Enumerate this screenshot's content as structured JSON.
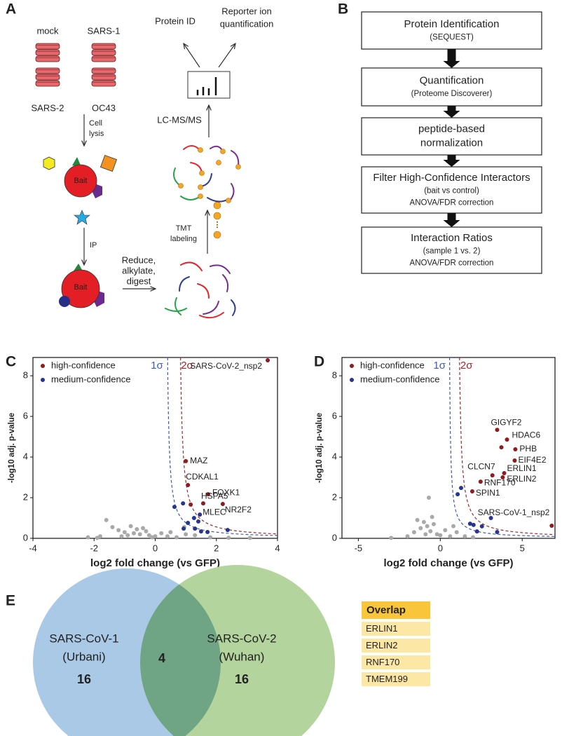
{
  "panel_labels": [
    "A",
    "B",
    "C",
    "D",
    "E"
  ],
  "schematic": {
    "samples": [
      "mock",
      "SARS-1",
      "SARS-2",
      "OC43"
    ],
    "lysis": [
      "Cell",
      "lysis"
    ],
    "bait": "Bait",
    "ip": "IP",
    "digest": [
      "Reduce,",
      "alkylate,",
      "digest"
    ],
    "tmt": [
      "TMT",
      "labeling"
    ],
    "lcms": "LC-MS/MS",
    "protein_id": "Protein ID",
    "reporter": [
      "Reporter ion",
      "quantification"
    ]
  },
  "pipeline": [
    {
      "title": [
        "Protein Identification"
      ],
      "notes": [
        "(SEQUEST)"
      ]
    },
    {
      "title": [
        "Quantification"
      ],
      "notes": [
        "(Proteome Discoverer)"
      ]
    },
    {
      "title": [
        "peptide-based",
        "normalization"
      ]
    },
    {
      "title": [
        "Filter High-Confidence Interactors"
      ],
      "notes": [
        "(bait vs control)",
        "ANOVA/FDR correction"
      ]
    },
    {
      "title": [
        "Interaction Ratios"
      ],
      "notes": [
        "(sample 1 vs. 2)",
        "ANOVA/FDR correction"
      ]
    }
  ],
  "chart_data": [
    {
      "type": "scatter",
      "xlabel": "log2 fold change (vs GFP)",
      "ylabel": "-log10 adj. p-value",
      "xlim": [
        -4,
        4
      ],
      "xticks": [
        -4,
        -2,
        0,
        2,
        4
      ],
      "ylim": [
        0,
        8.9
      ],
      "yticks": [
        0,
        2,
        4,
        6,
        8
      ],
      "legend": "upper left",
      "thresholds": [
        {
          "label": "1σ",
          "color": "#3f57c4"
        },
        {
          "label": "2σ",
          "color": "#a3262a"
        }
      ],
      "series": [
        {
          "color": "#a9a9a9",
          "x": [
            -1.6,
            -1.4,
            -1.2,
            -1.0,
            -0.8,
            -0.6,
            -0.5,
            -0.3,
            -0.2,
            0,
            0.2,
            -0.9,
            -1.8,
            -0.4,
            0.4,
            -2.2,
            0.7,
            1.0,
            -0.7,
            -1.1,
            -1.9,
            -0.1,
            0.5,
            0.95,
            1.3,
            1.8,
            2.4,
            3.1
          ],
          "y": [
            0.9,
            0.55,
            0.4,
            0.3,
            0.6,
            0.45,
            0.2,
            0.35,
            0.15,
            0.1,
            0.25,
            0.15,
            0.1,
            0.5,
            0.1,
            0.05,
            0.05,
            0.2,
            0.25,
            0.1,
            0.02,
            0.05,
            0.3,
            0.55,
            0.15,
            0.05,
            0.03,
            0.02
          ]
        },
        {
          "name": "high-confidence",
          "color": "#8e1b1f",
          "x": [
            3.68,
            1.0,
            1.07,
            1.73,
            1.57,
            2.21,
            1.16
          ],
          "y": [
            8.76,
            3.8,
            2.62,
            2.17,
            1.72,
            1.69,
            1.66
          ],
          "labels": [
            "SARS-CoV-2_nsp2",
            "MAZ",
            "CDKAL1",
            "FOXK1",
            "HSPA5",
            "NR2F2",
            null
          ]
        },
        {
          "name": "medium-confidence",
          "color": "#26358f",
          "x": [
            1.46,
            0.63,
            0.91,
            1.27,
            1.07,
            1.41,
            1.71,
            1.5,
            0.93,
            2.37,
            1.3
          ],
          "y": [
            1.17,
            1.55,
            1.72,
            1.0,
            0.76,
            0.83,
            0.31,
            0.34,
            0.48,
            0.41,
            0.48
          ],
          "labels": [
            "MLEC",
            null,
            null,
            null,
            null,
            null,
            null,
            null,
            null,
            null,
            null
          ]
        }
      ]
    },
    {
      "type": "scatter",
      "xlabel": "log2 fold change (vs GFP)",
      "ylabel": "-log10 adj. p-value",
      "xlim": [
        -6,
        7
      ],
      "xticks": [
        -5,
        0,
        5
      ],
      "ylim": [
        0,
        8.9
      ],
      "yticks": [
        0,
        2,
        4,
        6,
        8
      ],
      "legend": "upper left",
      "thresholds": [
        {
          "label": "1σ",
          "color": "#3f57c4"
        },
        {
          "label": "2σ",
          "color": "#a3262a"
        }
      ],
      "series": [
        {
          "color": "#a9a9a9",
          "x": [
            -0.7,
            -1.2,
            -1.0,
            -0.8,
            -0.6,
            -0.4,
            -0.2,
            0,
            0.3,
            0.6,
            -1.6,
            -2.0,
            -0.9,
            1.0,
            1.5,
            2.0,
            -3,
            -1.4,
            -0.5,
            0.8
          ],
          "y": [
            2.0,
            0.5,
            0.8,
            0.6,
            0.35,
            0.7,
            0.2,
            0.15,
            0.4,
            0.1,
            0.3,
            0.1,
            0.2,
            0.3,
            0.1,
            0.05,
            0.02,
            0.9,
            1.05,
            0.6
          ]
        },
        {
          "name": "high-confidence",
          "color": "#8e1b1f",
          "x": [
            3.47,
            4.07,
            3.73,
            4.58,
            4.54,
            3.9,
            3.81,
            3.18,
            2.46,
            1.95,
            6.8
          ],
          "y": [
            5.34,
            4.86,
            4.48,
            4.38,
            3.83,
            3.21,
            3.0,
            3.1,
            2.79,
            2.31,
            0.62
          ],
          "labels": [
            "GIGYF2",
            "HDAC6",
            null,
            "PHB",
            "EIF4E2",
            "ERLIN1",
            "ERLIN2",
            "CLCN7",
            "RNF170",
            "SPIN1",
            "SARS-CoV-1_nsp2"
          ]
        },
        {
          "name": "medium-confidence",
          "color": "#26358f",
          "x": [
            2.54,
            3.09,
            2.24,
            2.03,
            1.82,
            1.27,
            1.06,
            3.47
          ],
          "y": [
            0.59,
            1.0,
            0.34,
            0.66,
            0.72,
            2.48,
            2.17,
            0.31
          ]
        }
      ]
    }
  ],
  "venn": {
    "sets": [
      {
        "name": [
          "SARS-CoV-1",
          "(Urbani)"
        ],
        "count": 16,
        "color": "#a9c9e7"
      },
      {
        "name": [
          "SARS-CoV-2",
          "(Wuhan)"
        ],
        "count": 16,
        "color": "#b3d49c"
      }
    ],
    "overlap_count": 4,
    "overlap_color": "#6fa585"
  },
  "overlap_table": {
    "header": "Overlap",
    "rows": [
      "ERLIN1",
      "ERLIN2",
      "RNF170",
      "TMEM199"
    ]
  }
}
